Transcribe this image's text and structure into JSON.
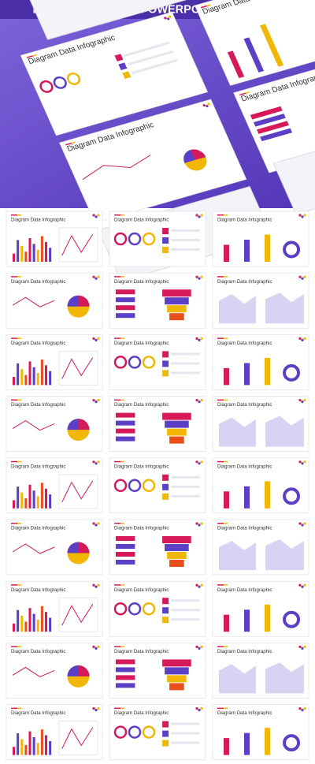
{
  "header": {
    "title": "DIAGRAM CHART - POWERPOINT TEMPLATE"
  },
  "hero": {
    "slides": [
      "Diagram Data Infographic",
      "Diagram Data Infographic",
      "Diagram Data Infographic",
      "Diagram Data Infographic"
    ]
  },
  "slides": [
    "Diagram Data Infographic",
    "Diagram Data Infographic",
    "Diagram Data Infographic",
    "Diagram Data Infographic",
    "Diagram Data Infographic",
    "Diagram Data Infographic",
    "Diagram Data Infographic",
    "Diagram Data Infographic",
    "Diagram Data Infographic",
    "Diagram Data Infographic",
    "Diagram Data Infographic",
    "Diagram Data Infographic",
    "Diagram Data Infographic",
    "Diagram Data Infographic",
    "Diagram Data Infographic",
    "Diagram Data Infographic",
    "Diagram Data Infographic",
    "Diagram Data Infographic",
    "Diagram Data Infographic",
    "Diagram Data Infographic",
    "Diagram Data Infographic",
    "Diagram Data Infographic",
    "Diagram Data Infographic",
    "Diagram Data Infographic",
    "Diagram Data Infographic",
    "Diagram Data Infographic",
    "Diagram Data Infographic"
  ]
}
